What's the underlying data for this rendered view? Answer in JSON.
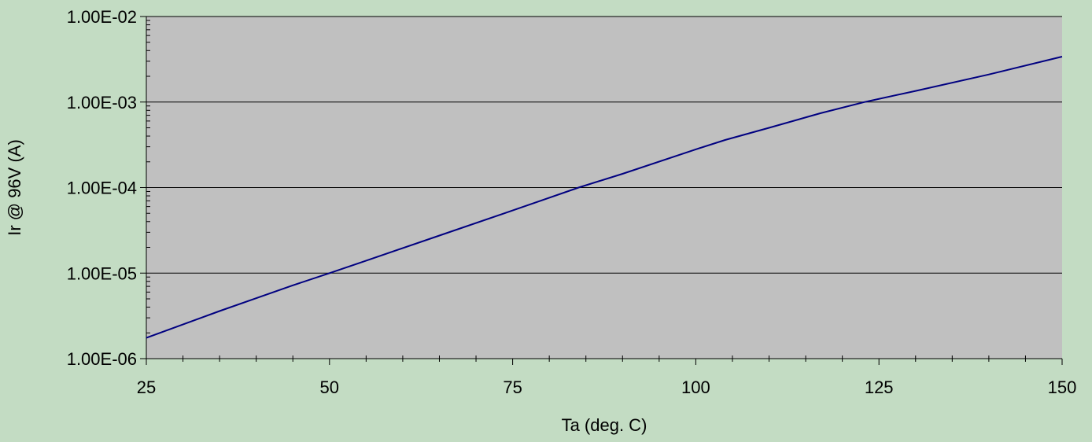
{
  "chart_data": {
    "type": "line",
    "title": "",
    "xlabel": "Ta (deg. C)",
    "ylabel": "Ir @ 96V (A)",
    "xlim": [
      25,
      150
    ],
    "ylim": [
      1e-06,
      0.01
    ],
    "y_scale": "log",
    "grid": true,
    "legend": "none",
    "x_ticks": [
      25,
      50,
      75,
      100,
      125,
      150
    ],
    "x_tick_labels": [
      "25",
      "50",
      "75",
      "100",
      "125",
      "150"
    ],
    "y_ticks": [
      1e-06,
      1e-05,
      0.0001,
      0.001,
      0.01
    ],
    "y_tick_labels": [
      "1.00E-06",
      "1.00E-05",
      "1.00E-04",
      "1.00E-03",
      "1.00E-02"
    ],
    "series": [
      {
        "color": "#000080",
        "x": [
          25,
          35,
          45,
          50,
          55,
          65,
          75,
          84,
          90,
          100,
          104,
          110,
          117,
          123,
          130,
          140,
          150
        ],
        "y": [
          1.75e-06,
          3.6e-06,
          7.2e-06,
          1e-05,
          1.4e-05,
          2.75e-05,
          5.4e-05,
          0.0001,
          0.000145,
          0.00028,
          0.00036,
          0.0005,
          0.00074,
          0.001,
          0.00135,
          0.0021,
          0.0034
        ]
      }
    ]
  },
  "colors": {
    "background": "#c3dcc3",
    "plot_area": "#c0c0c0",
    "line": "#000080",
    "gridline": "#000000"
  }
}
